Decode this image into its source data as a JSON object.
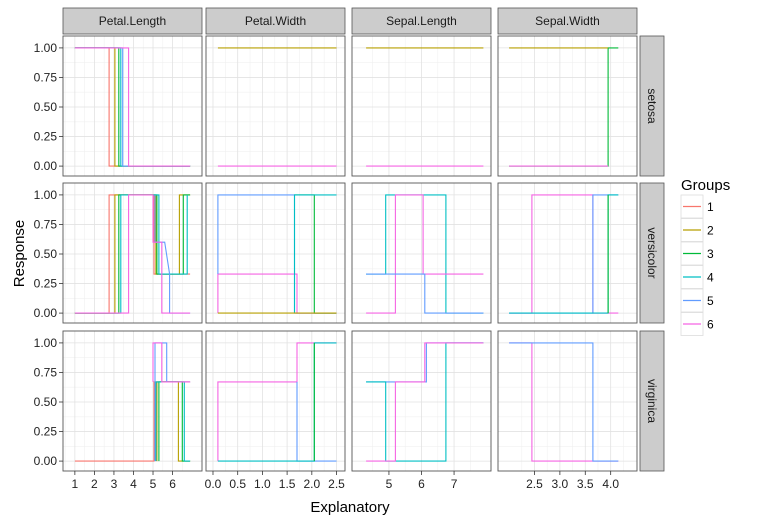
{
  "chart_data": {
    "type": "line",
    "subtype": "faceted step plot (cumulative split response)",
    "xlabel": "Explanatory",
    "ylabel": "Response",
    "legend": {
      "title": "Groups",
      "placement": "right",
      "entries": [
        "1",
        "2",
        "3",
        "4",
        "5",
        "6"
      ]
    },
    "colors": {
      "1": "#F8766D",
      "2": "#B79F00",
      "3": "#00BA38",
      "4": "#00BFC4",
      "5": "#619CFF",
      "6": "#F564E3"
    },
    "grid": true,
    "facet_columns": [
      "Petal.Length",
      "Petal.Width",
      "Sepal.Length",
      "Sepal.Width"
    ],
    "facet_rows": [
      "setosa",
      "versicolor",
      "virginica"
    ],
    "y_axis": {
      "ylim": [
        -0.05,
        1.05
      ],
      "ticks": [
        0,
        0.25,
        0.5,
        0.75,
        1
      ],
      "tick_labels": [
        "0.00",
        "0.25",
        "0.50",
        "0.75",
        "1.00"
      ]
    },
    "x_axes": {
      "Petal.Length": {
        "xlim": [
          0.7,
          7.2
        ],
        "ticks": [
          1,
          2,
          3,
          4,
          5,
          6
        ],
        "tick_labels": [
          "1",
          "2",
          "3",
          "4",
          "5",
          "6"
        ]
      },
      "Petal.Width": {
        "xlim": [
          -0.02,
          2.55
        ],
        "ticks": [
          0,
          0.5,
          1,
          1.5,
          2,
          2.5
        ],
        "tick_labels": [
          "0.0",
          "0.5",
          "1.0",
          "1.5",
          "2.0",
          "2.5"
        ]
      },
      "Sepal.Length": {
        "xlim": [
          4.05,
          7.95
        ],
        "ticks": [
          5,
          6,
          7
        ],
        "tick_labels": [
          "5",
          "6",
          "7"
        ]
      },
      "Sepal.Width": {
        "xlim": [
          1.9,
          4.4
        ],
        "ticks": [
          2.5,
          3,
          3.5,
          4
        ],
        "tick_labels": [
          "2.5",
          "3.0",
          "3.5",
          "4.0"
        ]
      }
    },
    "panels": [
      {
        "row": "setosa",
        "col": "Petal.Length",
        "series": [
          {
            "group": "1",
            "x": [
              1,
              2.75,
              2.75,
              6.9
            ],
            "y": [
              1,
              1,
              0,
              0
            ]
          },
          {
            "group": "2",
            "x": [
              1,
              3.05,
              3.05,
              6.9
            ],
            "y": [
              1,
              1,
              0,
              0
            ]
          },
          {
            "group": "3",
            "x": [
              1,
              3.25,
              3.25,
              6.9
            ],
            "y": [
              1,
              1,
              0,
              0
            ]
          },
          {
            "group": "4",
            "x": [
              1,
              3.35,
              3.35,
              6.9
            ],
            "y": [
              1,
              1,
              0,
              0
            ]
          },
          {
            "group": "5",
            "x": [
              1,
              3.45,
              3.45,
              6.9
            ],
            "y": [
              1,
              1,
              0,
              0
            ]
          },
          {
            "group": "6",
            "x": [
              1,
              3.75,
              3.75,
              6.9
            ],
            "y": [
              1,
              1,
              0,
              0
            ]
          }
        ]
      },
      {
        "row": "setosa",
        "col": "Petal.Width",
        "series": [
          {
            "group": "2",
            "x": [
              0.1,
              2.5
            ],
            "y": [
              1,
              1
            ]
          },
          {
            "group": "6",
            "x": [
              0.1,
              2.5
            ],
            "y": [
              0,
              0
            ]
          }
        ]
      },
      {
        "row": "setosa",
        "col": "Sepal.Length",
        "series": [
          {
            "group": "2",
            "x": [
              4.3,
              7.9
            ],
            "y": [
              1,
              1
            ]
          },
          {
            "group": "6",
            "x": [
              4.3,
              7.9
            ],
            "y": [
              0,
              0
            ]
          }
        ]
      },
      {
        "row": "setosa",
        "col": "Sepal.Width",
        "series": [
          {
            "group": "3",
            "x": [
              2.0,
              3.95,
              3.95,
              4.15
            ],
            "y": [
              0,
              0,
              1,
              1
            ]
          },
          {
            "group": "2",
            "x": [
              2.0,
              3.95
            ],
            "y": [
              1,
              1
            ]
          },
          {
            "group": "6",
            "x": [
              2.0,
              3.95
            ],
            "y": [
              0,
              0
            ]
          }
        ]
      },
      {
        "row": "versicolor",
        "col": "Petal.Length",
        "series": [
          {
            "group": "1",
            "x": [
              1,
              2.75,
              2.75,
              5.05,
              5.05,
              6.9
            ],
            "y": [
              0,
              0,
              1,
              1,
              0.33,
              0.33
            ]
          },
          {
            "group": "2",
            "x": [
              1,
              3.05,
              3.05,
              5.15,
              5.15,
              6.35,
              6.35,
              6.9
            ],
            "y": [
              0,
              0,
              1,
              1,
              0.33,
              0.33,
              1,
              1
            ]
          },
          {
            "group": "3",
            "x": [
              1,
              3.25,
              3.25,
              5.2,
              5.2,
              6.55,
              6.55,
              6.9
            ],
            "y": [
              0,
              0,
              1,
              1,
              0.33,
              0.33,
              1,
              1
            ]
          },
          {
            "group": "4",
            "x": [
              1,
              3.35,
              3.35,
              5.3,
              5.3,
              6.75,
              6.75
            ],
            "y": [
              0,
              0,
              1,
              1,
              0.33,
              0.33,
              1
            ]
          },
          {
            "group": "5",
            "x": [
              5.1,
              5.1,
              5.6,
              5.85,
              5.85,
              6.9
            ],
            "y": [
              1,
              0.6,
              0.6,
              0.33,
              0,
              0
            ]
          },
          {
            "group": "6",
            "x": [
              1,
              3.75,
              3.75,
              5.0,
              5.0,
              5.45,
              5.45,
              6.9
            ],
            "y": [
              0,
              0,
              1,
              1,
              0.6,
              0.6,
              0,
              0
            ]
          }
        ]
      },
      {
        "row": "versicolor",
        "col": "Petal.Width",
        "series": [
          {
            "group": "6",
            "x": [
              0.1,
              0.1,
              1.7,
              1.7,
              2.5
            ],
            "y": [
              0,
              0.33,
              0.33,
              0,
              0
            ]
          },
          {
            "group": "5",
            "x": [
              0.1,
              0.1,
              1.65,
              1.65,
              2.5
            ],
            "y": [
              0.33,
              1,
              1,
              0,
              0
            ]
          },
          {
            "group": "3",
            "x": [
              1.65,
              2.05,
              2.05,
              2.5
            ],
            "y": [
              1,
              1,
              0,
              0
            ]
          },
          {
            "group": "4",
            "x": [
              1.65,
              1.65,
              2.05,
              2.05,
              2.5
            ],
            "y": [
              0,
              1,
              1,
              1,
              1
            ]
          },
          {
            "group": "2",
            "x": [
              0.1,
              2.5
            ],
            "y": [
              0,
              0
            ]
          }
        ]
      },
      {
        "row": "versicolor",
        "col": "Sepal.Length",
        "series": [
          {
            "group": "4",
            "x": [
              4.3,
              4.9,
              4.9,
              6.75,
              6.75,
              7.9
            ],
            "y": [
              0.33,
              0.33,
              1,
              1,
              0,
              0
            ]
          },
          {
            "group": "6",
            "x": [
              4.3,
              5.2,
              5.2,
              6.05,
              6.05,
              7.9
            ],
            "y": [
              0,
              0,
              1,
              1,
              0.33,
              0.33
            ]
          },
          {
            "group": "5",
            "x": [
              4.3,
              6.1,
              6.1,
              7.9
            ],
            "y": [
              0.33,
              0.33,
              0,
              0
            ]
          }
        ]
      },
      {
        "row": "versicolor",
        "col": "Sepal.Width",
        "series": [
          {
            "group": "6",
            "x": [
              2.0,
              2.45,
              2.45,
              3.65,
              3.65,
              4.15
            ],
            "y": [
              0,
              0,
              1,
              1,
              0,
              0
            ]
          },
          {
            "group": "5",
            "x": [
              2.0,
              3.65,
              3.65,
              4.15
            ],
            "y": [
              0,
              0,
              1,
              1
            ]
          },
          {
            "group": "4",
            "x": [
              2.0,
              3.95,
              3.95,
              4.15
            ],
            "y": [
              0,
              0,
              1,
              1
            ]
          },
          {
            "group": "3",
            "x": [
              3.95,
              3.95
            ],
            "y": [
              0,
              1
            ]
          }
        ]
      },
      {
        "row": "virginica",
        "col": "Petal.Length",
        "series": [
          {
            "group": "1",
            "x": [
              1,
              5.05,
              5.05,
              6.9
            ],
            "y": [
              0,
              0,
              0.67,
              0.67
            ]
          },
          {
            "group": "2",
            "x": [
              5.2,
              5.2,
              6.3,
              6.3,
              6.9
            ],
            "y": [
              0,
              0.67,
              0.67,
              0,
              0
            ]
          },
          {
            "group": "3",
            "x": [
              5.3,
              5.3,
              6.5,
              6.5,
              6.9
            ],
            "y": [
              0,
              0.67,
              0.67,
              0,
              0
            ]
          },
          {
            "group": "4",
            "x": [
              5.15,
              5.15,
              6.6,
              6.6,
              6.9
            ],
            "y": [
              0,
              0.67,
              0.67,
              0,
              0
            ]
          },
          {
            "group": "5",
            "x": [
              5.1,
              5.1,
              5.7,
              5.7,
              6.9
            ],
            "y": [
              0,
              1,
              1,
              0.67,
              0.67
            ]
          },
          {
            "group": "6",
            "x": [
              5.0,
              5.0,
              5.45,
              5.45,
              6.9
            ],
            "y": [
              0.67,
              1,
              1,
              0.67,
              0.67
            ]
          }
        ]
      },
      {
        "row": "virginica",
        "col": "Petal.Width",
        "series": [
          {
            "group": "6",
            "x": [
              0.1,
              0.1,
              1.7,
              1.7,
              2.5
            ],
            "y": [
              0,
              0.67,
              0.67,
              1,
              1
            ]
          },
          {
            "group": "5",
            "x": [
              1.7,
              1.7,
              2.5
            ],
            "y": [
              0.67,
              0,
              0
            ]
          },
          {
            "group": "4",
            "x": [
              0.1,
              2.05,
              2.05,
              2.5
            ],
            "y": [
              0,
              0,
              1,
              1
            ]
          },
          {
            "group": "3",
            "x": [
              2.05,
              2.05
            ],
            "y": [
              0,
              1
            ]
          }
        ]
      },
      {
        "row": "virginica",
        "col": "Sepal.Length",
        "series": [
          {
            "group": "5",
            "x": [
              4.3,
              6.15,
              6.15,
              7.9
            ],
            "y": [
              0.67,
              0.67,
              1,
              1
            ]
          },
          {
            "group": "4",
            "x": [
              4.3,
              4.9,
              4.9,
              6.75,
              6.75,
              7.9
            ],
            "y": [
              0.67,
              0.67,
              0,
              0,
              1,
              1
            ]
          },
          {
            "group": "6",
            "x": [
              4.3,
              5.2,
              5.2,
              6.1,
              6.1,
              7.9
            ],
            "y": [
              0,
              0,
              0.67,
              0.67,
              1,
              1
            ]
          }
        ]
      },
      {
        "row": "virginica",
        "col": "Sepal.Width",
        "series": [
          {
            "group": "6",
            "x": [
              2.0,
              2.45,
              2.45,
              4.15
            ],
            "y": [
              1,
              1,
              0,
              0
            ]
          },
          {
            "group": "5",
            "x": [
              2.0,
              3.65,
              3.65,
              4.15
            ],
            "y": [
              1,
              1,
              0,
              0
            ]
          }
        ]
      }
    ]
  }
}
